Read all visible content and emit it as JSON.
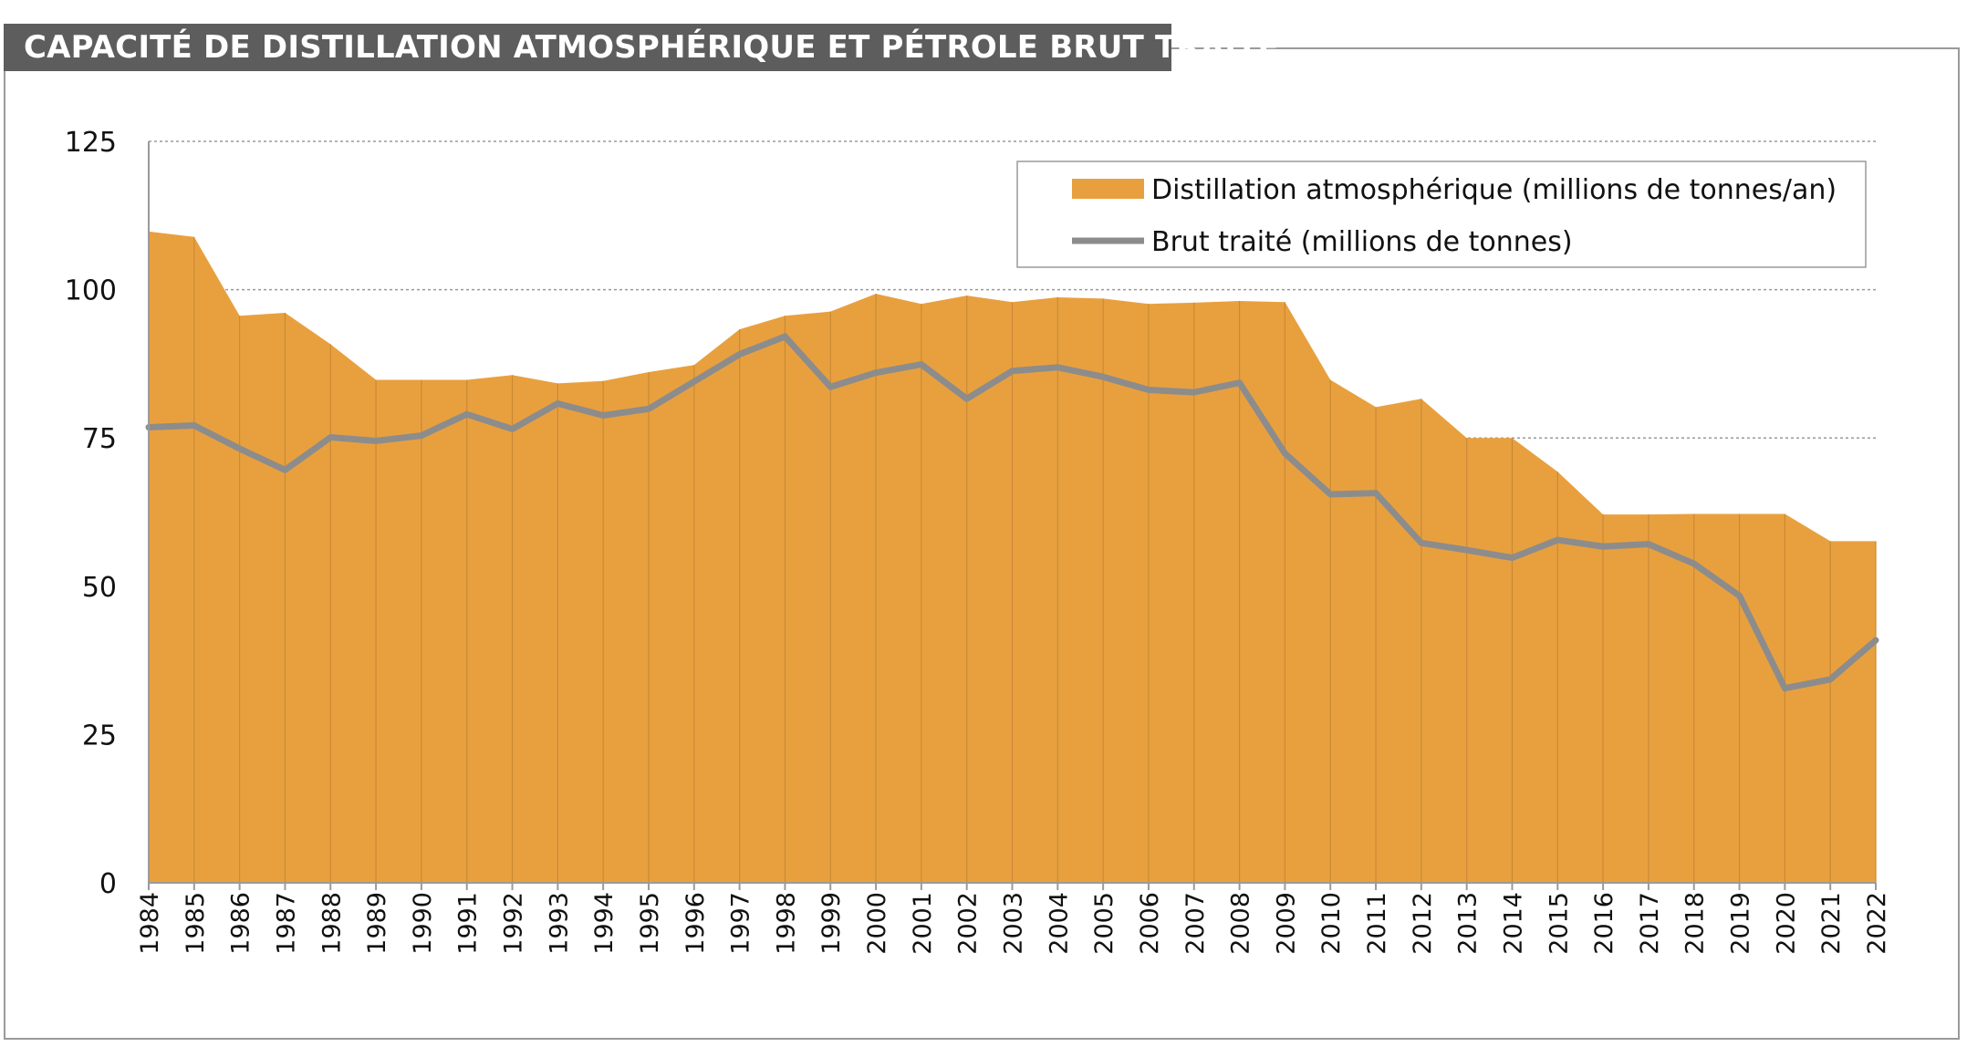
{
  "title": "CAPACITÉ DE DISTILLATION ATMOSPHÉRIQUE ET PÉTROLE BRUT TRAITÉ",
  "colors": {
    "area": "#e8a03f",
    "line": "#8c8c8c",
    "grid": "#9a9a9a",
    "title_bg": "#5d5d5d"
  },
  "chart_data": {
    "type": "area",
    "title": "CAPACITÉ DE DISTILLATION ATMOSPHÉRIQUE ET PÉTROLE BRUT TRAITÉ",
    "xlabel": "",
    "ylabel": "",
    "ylim": [
      0,
      125
    ],
    "yticks": [
      0,
      25,
      50,
      75,
      100,
      125
    ],
    "grid": true,
    "legend_position": "top-right",
    "categories": [
      "1984",
      "1985",
      "1986",
      "1987",
      "1988",
      "1989",
      "1990",
      "1991",
      "1992",
      "1993",
      "1994",
      "1995",
      "1996",
      "1997",
      "1998",
      "1999",
      "2000",
      "2001",
      "2002",
      "2003",
      "2004",
      "2005",
      "2006",
      "2007",
      "2008",
      "2009",
      "2010",
      "2011",
      "2012",
      "2013",
      "2014",
      "2015",
      "2016",
      "2017",
      "2018",
      "2019",
      "2020",
      "2021",
      "2022"
    ],
    "series": [
      {
        "name": "Distillation atmosphérique (millions de tonnes/an)",
        "kind": "area",
        "values": [
          109.8,
          108.9,
          95.6,
          96.1,
          90.8,
          84.8,
          84.8,
          84.8,
          85.6,
          84.2,
          84.6,
          86.1,
          87.3,
          93.3,
          95.6,
          96.3,
          99.3,
          97.6,
          99.0,
          97.9,
          98.7,
          98.5,
          97.6,
          97.8,
          98.1,
          97.9,
          84.8,
          80.2,
          81.6,
          75.0,
          75.0,
          69.3,
          62.1,
          62.1,
          62.2,
          62.2,
          62.2,
          57.6,
          57.6
        ]
      },
      {
        "name": "Brut traité (millions de tonnes)",
        "kind": "line",
        "values": [
          76.8,
          77.1,
          73.2,
          69.6,
          75.1,
          74.5,
          75.4,
          79.0,
          76.5,
          80.8,
          78.8,
          79.9,
          84.5,
          89.1,
          92.1,
          83.6,
          86.0,
          87.4,
          81.6,
          86.3,
          86.9,
          85.3,
          83.1,
          82.7,
          84.3,
          72.4,
          65.5,
          65.7,
          57.3,
          56.1,
          54.8,
          57.8,
          56.7,
          57.1,
          53.8,
          48.4,
          32.8,
          34.3,
          40.9
        ]
      }
    ]
  }
}
